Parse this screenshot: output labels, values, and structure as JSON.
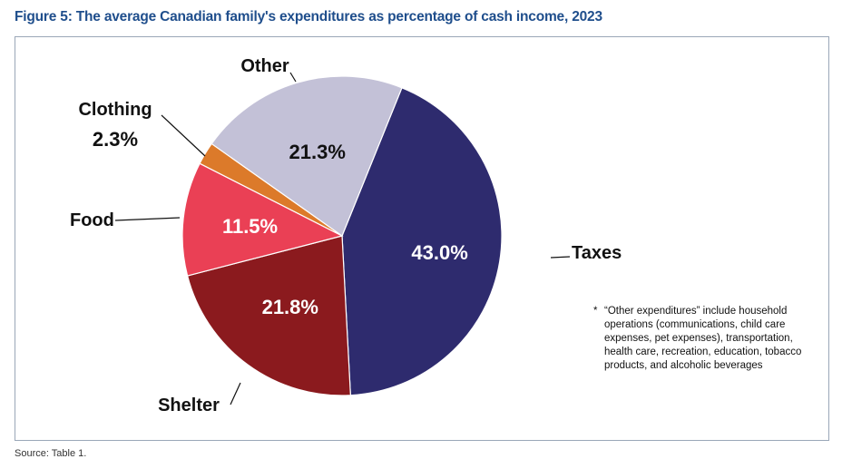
{
  "title": "Figure 5: The average Canadian family's expenditures as percentage of cash income, 2023",
  "chart_data": {
    "type": "pie",
    "title": "Figure 5: The average Canadian family's expenditures as percentage of cash income, 2023",
    "slices": [
      {
        "label": "Taxes",
        "value": 43.0,
        "value_label": "43.0%",
        "color": "#2e2b6e"
      },
      {
        "label": "Shelter",
        "value": 21.8,
        "value_label": "21.8%",
        "color": "#8b1a1e"
      },
      {
        "label": "Food",
        "value": 11.5,
        "value_label": "11.5%",
        "color": "#ea4055"
      },
      {
        "label": "Clothing",
        "value": 2.3,
        "value_label": "2.3%",
        "color": "#dc7a2a"
      },
      {
        "label": "Other",
        "value": 21.3,
        "value_label": "21.3%",
        "color": "#c3c1d7"
      }
    ]
  },
  "note": {
    "marker": "*",
    "text": "“Other expenditures” include household operations (communications, child care expenses, pet expenses), transportation, health care, recreation, education, tobacco products, and alcoholic beverages"
  },
  "source": "Source: Table 1."
}
